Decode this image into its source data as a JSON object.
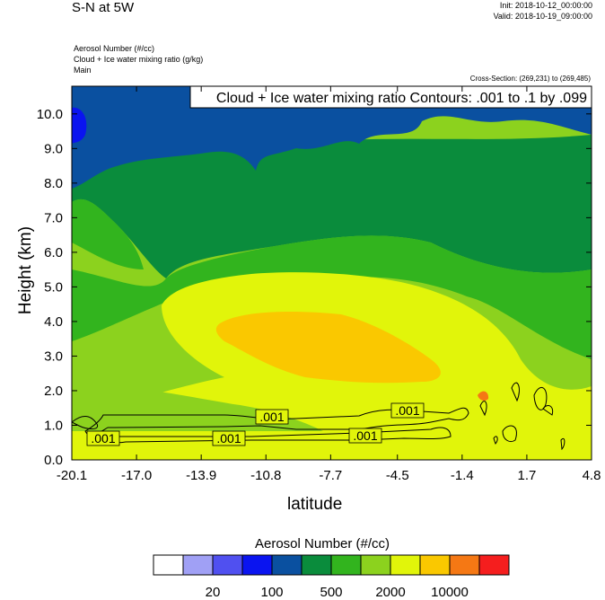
{
  "header": {
    "title": "S-N at 5W",
    "init": "Init: 2018-10-12_00:00:00",
    "valid": "Valid: 2018-10-19_09:00:00",
    "fields": [
      "Aerosol Number   (#/cc)",
      "Cloud + Ice water mixing ratio   (g/kg)",
      "Main"
    ],
    "cross_section": "Cross-Section: (269,231) to (269,485)",
    "contour_info": "Cloud + Ice water mixing ratio Contours: .001 to .1 by .099"
  },
  "chart_data": {
    "type": "heatmap",
    "xlabel": "latitude",
    "ylabel": "Height (km)",
    "xlim": [
      -20.1,
      4.8
    ],
    "ylim": [
      0.0,
      10.8
    ],
    "xticks": [
      "-20.1",
      "-17.0",
      "-13.9",
      "-10.8",
      "-7.7",
      "-4.5",
      "-1.4",
      "1.7",
      "4.8"
    ],
    "yticks": [
      "0.0",
      "1.0",
      "2.0",
      "3.0",
      "4.0",
      "5.0",
      "6.0",
      "7.0",
      "8.0",
      "9.0",
      "10.0"
    ],
    "contour_labels": [
      ".001",
      ".001",
      ".001",
      ".001",
      ".001"
    ],
    "colorbar": {
      "title": "Aerosol Number  (#/cc)",
      "colors": [
        "#ffffff",
        "#a0a0f5",
        "#5050f0",
        "#0a14f0",
        "#0a50a0",
        "#0a8c3c",
        "#32b41e",
        "#8cd21e",
        "#e1f50a",
        "#fac800",
        "#f57814",
        "#f51e1e"
      ],
      "labels": [
        "20",
        "100",
        "500",
        "2000",
        "10000"
      ]
    }
  }
}
